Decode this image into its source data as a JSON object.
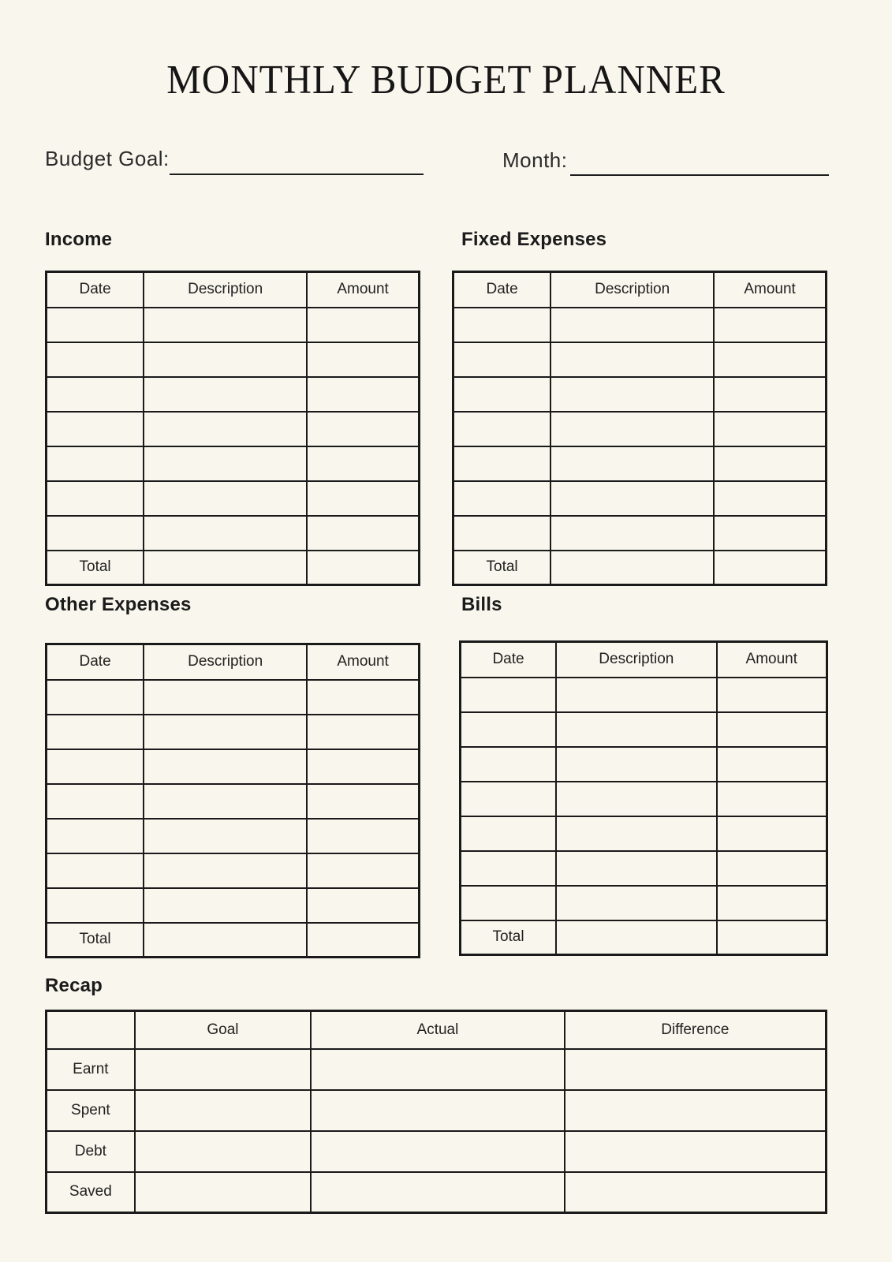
{
  "page": {
    "title": "MONTHLY BUDGET PLANNER"
  },
  "fields": {
    "budget_goal_label": "Budget Goal:",
    "month_label": "Month:",
    "budget_goal_value": "",
    "month_value": ""
  },
  "table": {
    "columns": [
      "Date",
      "Description",
      "Amount"
    ],
    "total_label": "Total",
    "empty_data_rows_per_table": 7
  },
  "sections": {
    "income": {
      "heading": "Income"
    },
    "fixed_expenses": {
      "heading": "Fixed Expenses"
    },
    "other_expenses": {
      "heading": "Other Expenses"
    },
    "bills": {
      "heading": "Bills"
    }
  },
  "recap": {
    "heading": "Recap",
    "columns": [
      "Goal",
      "Actual",
      "Difference"
    ],
    "rows": [
      "Earnt",
      "Spent",
      "Debt",
      "Saved"
    ]
  },
  "colors": {
    "background": "#F8F6ED",
    "ink": "#1A1A1A"
  }
}
